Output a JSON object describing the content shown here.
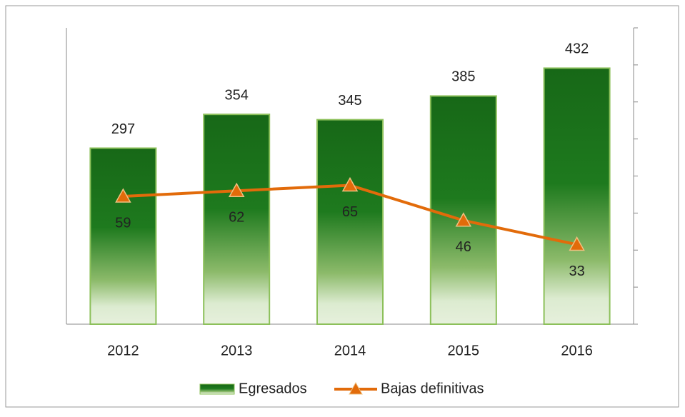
{
  "chart_data": {
    "type": "bar",
    "categories": [
      "2012",
      "2013",
      "2014",
      "2015",
      "2016"
    ],
    "ylim": [
      0,
      500
    ],
    "y2lim": [
      -10,
      150
    ],
    "y2ticks": [
      -10,
      10,
      30,
      50,
      70,
      90,
      110,
      130,
      150
    ],
    "series": [
      {
        "name": "Egresados",
        "type": "bar",
        "color": "#1a6b1a",
        "values": [
          297,
          354,
          345,
          385,
          432
        ]
      },
      {
        "name": "Bajas definitivas",
        "type": "line",
        "axis": "y2",
        "color": "#e26b0a",
        "values": [
          59,
          62,
          65,
          46,
          33
        ]
      }
    ],
    "legend": "bottom"
  }
}
